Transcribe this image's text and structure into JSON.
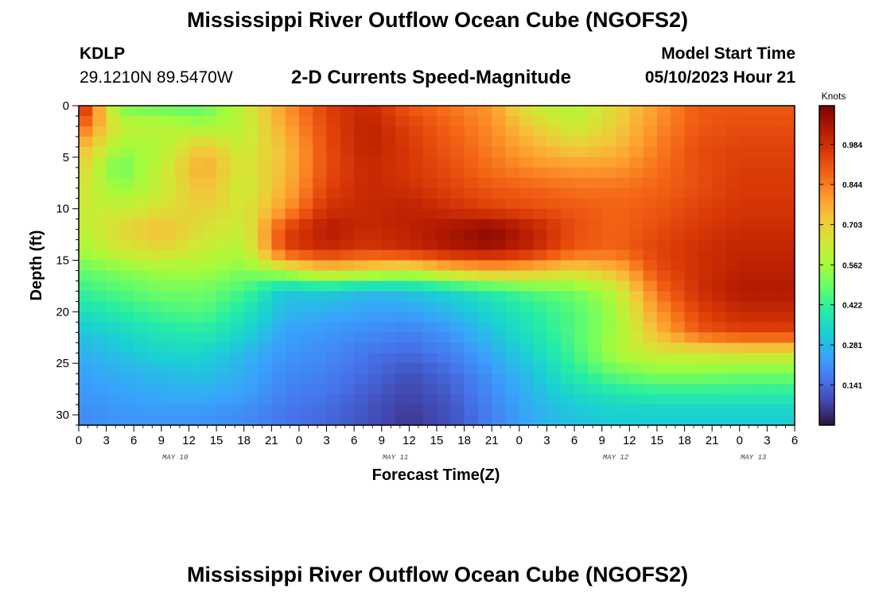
{
  "title": "Mississippi River Outflow Ocean Cube (NGOFS2)",
  "footer_title": "Mississippi River Outflow Ocean Cube (NGOFS2)",
  "station": {
    "id": "KDLP",
    "coords": "29.1210N  89.5470W"
  },
  "subtitle": "2-D Currents Speed-Magnitude",
  "model": {
    "label": "Model Start Time",
    "time": "05/10/2023 Hour 21"
  },
  "chart_data": {
    "type": "heatmap",
    "title": "2-D Currents Speed-Magnitude",
    "xlabel": "Forecast Time(Z)",
    "ylabel": "Depth (ft)",
    "x_tick_labels": [
      "0",
      "3",
      "6",
      "9",
      "12",
      "15",
      "18",
      "21",
      "0",
      "3",
      "6",
      "9",
      "12",
      "15",
      "18",
      "21",
      "0",
      "3",
      "6",
      "9",
      "12",
      "15",
      "18",
      "21",
      "0",
      "3",
      "6"
    ],
    "x_date_labels": [
      {
        "label": "MAY 10",
        "hour": 10.5
      },
      {
        "label": "MAY 11",
        "hour": 34.5
      },
      {
        "label": "MAY 12",
        "hour": 58.5
      },
      {
        "label": "MAY 13",
        "hour": 73.5
      }
    ],
    "xlim_hours": [
      0,
      78
    ],
    "y_ticks": [
      0,
      5,
      10,
      15,
      20,
      25,
      30
    ],
    "ylim": [
      0,
      31
    ],
    "y_inverted": true,
    "colorbar": {
      "title": "Knots",
      "ticks": [
        0.141,
        0.281,
        0.422,
        0.562,
        0.703,
        0.844,
        0.984
      ],
      "range": [
        0.0,
        1.12
      ],
      "colors": [
        "#30123b",
        "#4145ab",
        "#4675ed",
        "#39a2fc",
        "#1bcfd4",
        "#24eca6",
        "#61fc6c",
        "#a4fc3b",
        "#d1e834",
        "#f3c63a",
        "#fe9b2d",
        "#f36315",
        "#d93806",
        "#b11901",
        "#7a0402"
      ]
    },
    "grid_hours": [
      0,
      4.5,
      9,
      13.5,
      18,
      22.5,
      27,
      31.5,
      36,
      40.5,
      45,
      49.5,
      54,
      58.5,
      63,
      67.5,
      72,
      78
    ],
    "grid_depths": [
      0,
      2,
      4,
      6,
      8,
      10,
      12,
      14,
      16,
      18,
      20,
      22,
      24,
      26,
      28,
      30
    ],
    "values": [
      [
        1.05,
        0.5,
        0.48,
        0.47,
        0.62,
        0.8,
        0.95,
        1.0,
        0.9,
        0.85,
        0.8,
        0.62,
        0.58,
        0.68,
        0.8,
        0.9,
        0.9,
        0.9
      ],
      [
        0.9,
        0.62,
        0.6,
        0.56,
        0.6,
        0.78,
        0.93,
        1.02,
        0.94,
        0.88,
        0.82,
        0.7,
        0.62,
        0.7,
        0.82,
        0.9,
        0.92,
        0.92
      ],
      [
        0.76,
        0.56,
        0.58,
        0.72,
        0.62,
        0.74,
        0.92,
        1.02,
        0.96,
        0.9,
        0.84,
        0.76,
        0.7,
        0.74,
        0.84,
        0.92,
        0.94,
        0.94
      ],
      [
        0.7,
        0.48,
        0.62,
        0.78,
        0.64,
        0.74,
        0.92,
        1.0,
        0.96,
        0.92,
        0.86,
        0.82,
        0.8,
        0.8,
        0.86,
        0.92,
        0.95,
        0.95
      ],
      [
        0.66,
        0.54,
        0.62,
        0.74,
        0.62,
        0.76,
        0.94,
        1.0,
        0.98,
        0.94,
        0.9,
        0.88,
        0.86,
        0.86,
        0.88,
        0.92,
        0.96,
        0.96
      ],
      [
        0.62,
        0.62,
        0.66,
        0.7,
        0.64,
        0.8,
        0.98,
        1.0,
        1.02,
        0.98,
        0.94,
        0.92,
        0.9,
        0.88,
        0.9,
        0.94,
        0.97,
        0.97
      ],
      [
        0.6,
        0.68,
        0.74,
        0.66,
        0.62,
        0.94,
        1.04,
        1.0,
        1.02,
        1.06,
        1.1,
        1.02,
        0.92,
        0.88,
        0.92,
        0.96,
        0.99,
        0.99
      ],
      [
        0.56,
        0.64,
        0.68,
        0.62,
        0.58,
        0.94,
        1.0,
        0.96,
        1.0,
        1.04,
        1.06,
        1.0,
        0.9,
        0.88,
        0.94,
        0.98,
        1.01,
        1.01
      ],
      [
        0.48,
        0.52,
        0.56,
        0.56,
        0.52,
        0.6,
        0.7,
        0.66,
        0.62,
        0.72,
        0.76,
        0.74,
        0.68,
        0.74,
        0.92,
        0.98,
        1.02,
        1.02
      ],
      [
        0.42,
        0.46,
        0.5,
        0.5,
        0.44,
        0.3,
        0.32,
        0.28,
        0.3,
        0.34,
        0.4,
        0.46,
        0.5,
        0.6,
        0.86,
        0.98,
        1.04,
        1.04
      ],
      [
        0.36,
        0.4,
        0.44,
        0.46,
        0.38,
        0.28,
        0.26,
        0.24,
        0.24,
        0.28,
        0.34,
        0.4,
        0.46,
        0.56,
        0.8,
        0.94,
        1.0,
        1.0
      ],
      [
        0.3,
        0.34,
        0.38,
        0.4,
        0.34,
        0.24,
        0.22,
        0.2,
        0.18,
        0.22,
        0.3,
        0.38,
        0.46,
        0.56,
        0.74,
        0.9,
        0.94,
        0.94
      ],
      [
        0.26,
        0.3,
        0.34,
        0.34,
        0.28,
        0.22,
        0.2,
        0.16,
        0.14,
        0.18,
        0.26,
        0.34,
        0.44,
        0.58,
        0.64,
        0.64,
        0.66,
        0.66
      ],
      [
        0.24,
        0.26,
        0.28,
        0.3,
        0.26,
        0.2,
        0.18,
        0.14,
        0.1,
        0.14,
        0.22,
        0.3,
        0.4,
        0.48,
        0.52,
        0.52,
        0.5,
        0.5
      ],
      [
        0.22,
        0.24,
        0.26,
        0.26,
        0.24,
        0.18,
        0.16,
        0.12,
        0.08,
        0.12,
        0.2,
        0.28,
        0.34,
        0.38,
        0.4,
        0.4,
        0.4,
        0.4
      ],
      [
        0.2,
        0.22,
        0.22,
        0.22,
        0.2,
        0.16,
        0.14,
        0.1,
        0.06,
        0.1,
        0.18,
        0.26,
        0.3,
        0.32,
        0.32,
        0.32,
        0.32,
        0.32
      ]
    ]
  }
}
